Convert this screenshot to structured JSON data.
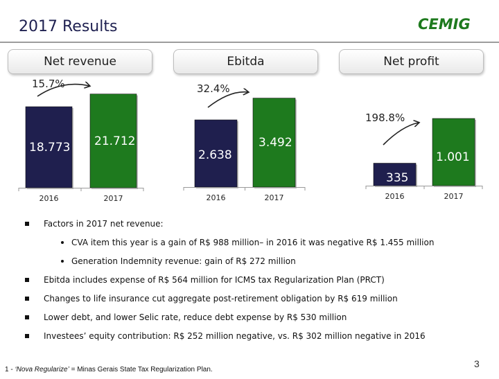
{
  "header": {
    "title": "2017 Results",
    "logo_text": "CEMIG"
  },
  "chart_data": [
    {
      "type": "bar",
      "title": "Net revenue",
      "categories": [
        "2016",
        "2017"
      ],
      "values": [
        18.773,
        21.712
      ],
      "value_labels": [
        "18.773",
        "21.712"
      ],
      "growth_label": "15.7%",
      "colors": [
        "#1f1f4e",
        "#1e7a1e"
      ]
    },
    {
      "type": "bar",
      "title": "Ebitda",
      "categories": [
        "2016",
        "2017"
      ],
      "values": [
        2.638,
        3.492
      ],
      "value_labels": [
        "2.638",
        "3.492"
      ],
      "growth_label": "32.4%",
      "colors": [
        "#1f1f4e",
        "#1e7a1e"
      ]
    },
    {
      "type": "bar",
      "title": "Net profit",
      "categories": [
        "2016",
        "2017"
      ],
      "values": [
        335,
        1001
      ],
      "value_labels": [
        "335",
        "1.001"
      ],
      "growth_label": "198.8%",
      "colors": [
        "#1f1f4e",
        "#1e7a1e"
      ]
    }
  ],
  "bullets": [
    {
      "level": 1,
      "text": "Factors in 2017 net revenue:"
    },
    {
      "level": 2,
      "text": "CVA item this year is a gain of R$ 988 million– in 2016 it was negative R$ 1.455 million"
    },
    {
      "level": 2,
      "text": "Generation Indemnity revenue: gain of R$ 272 million"
    },
    {
      "level": 1,
      "text": "Ebitda includes expense of R$ 564 million for ICMS tax Regularization Plan (PRCT)"
    },
    {
      "level": 1,
      "text": "Changes to life insurance cut aggregate post-retirement obligation by R$ 619 million"
    },
    {
      "level": 1,
      "text": "Lower debt, and lower Selic rate, reduce debt expense by R$ 530 million"
    },
    {
      "level": 1,
      "text": "Investees’ equity contribution: R$ 252 million negative, vs. R$ 302 million negative in 2016"
    }
  ],
  "footer": {
    "page_number": "3",
    "footnote_prefix": "1 - ",
    "footnote_term": "‘Nova Regularize’",
    "footnote_rest": " = Minas Gerais State Tax Regularization Plan."
  }
}
